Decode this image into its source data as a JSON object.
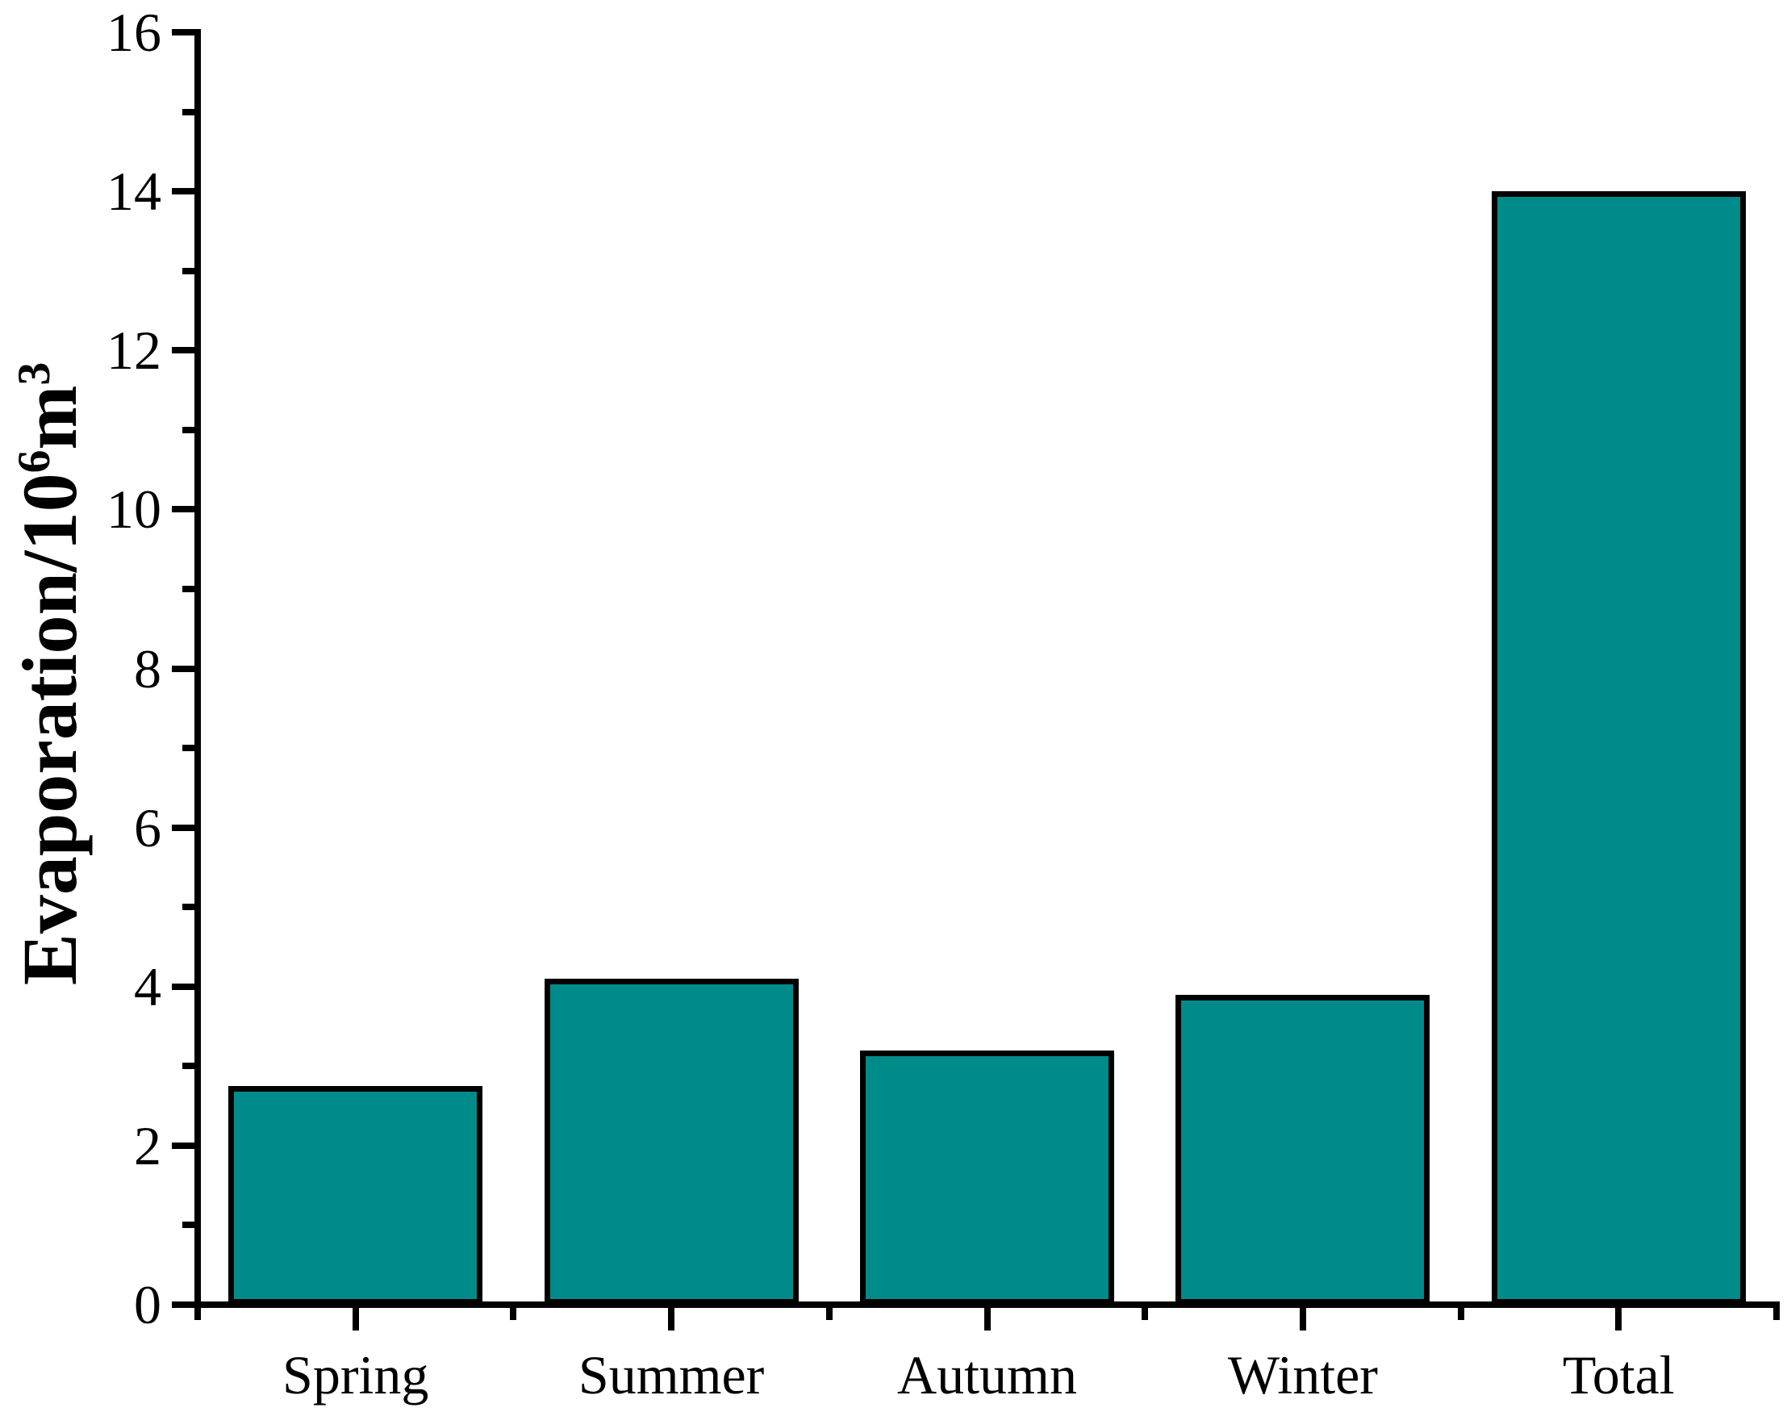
{
  "page": {
    "background_color": "#FFFFFF"
  },
  "chart_data": {
    "type": "bar",
    "title": "",
    "categories": [
      "Spring",
      "Summer",
      "Autumn",
      "Winter",
      "Total"
    ],
    "values": [
      2.75,
      4.1,
      3.2,
      3.9,
      14.0
    ],
    "xlabel": "",
    "ylabel": "Evaporation/10⁶m³",
    "ylabel_parts": {
      "base": "Evaporation/10",
      "sup1": "6",
      "mid": "m",
      "sup2": "3"
    },
    "ylim": [
      0,
      16
    ],
    "ytick_step": 2,
    "minor_tick_step": 1,
    "ytick_labels": [
      "0",
      "2",
      "4",
      "6",
      "8",
      "10",
      "12",
      "14",
      "16"
    ],
    "grid": false,
    "legend_position": "none",
    "bar_fill": "#008B8B",
    "bar_border": "#000000",
    "axis_color": "#000000",
    "text_color": "#000000"
  }
}
